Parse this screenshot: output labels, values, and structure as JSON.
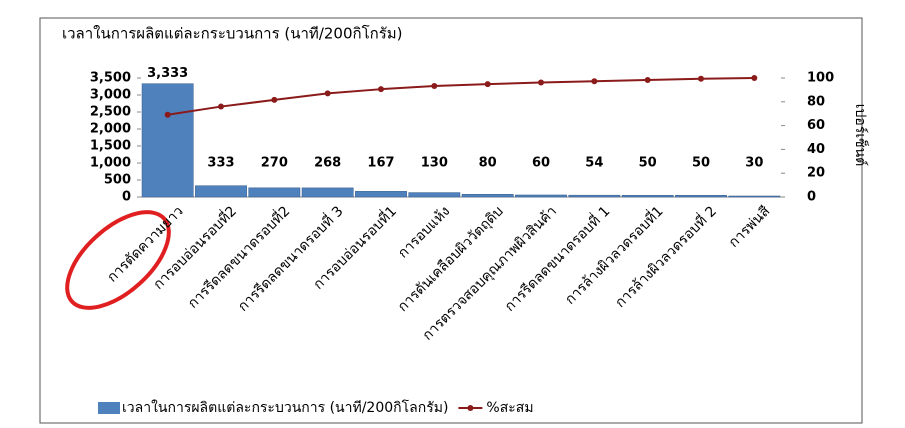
{
  "chart_data": {
    "type": "pareto",
    "title": "เวลาในการผลิตแต่ละกระบวนการ (นาที/200กิโกรัม)",
    "y2_label": "เปอร์เซ็นต์",
    "categories": [
      "การตัดความยาว",
      "การอบอ่อนรอบที่2",
      "การรีดลดขนาดรอบที่2",
      "การรีดลดขนาดรอบที่ 3",
      "การอบอ่อนรอบที่1",
      "การอบแห้ง",
      "การดันเคลือบผิววัตถุดิบ",
      "การตรวจสอบคุณภาพผิวสินค้า",
      "การรีดลดขนาดรอบที่ 1",
      "การล้างผิวลวดรอบที่1",
      "การล้างผิวลวดรอบที่ 2",
      "การพ่นสี"
    ],
    "series": [
      {
        "name": "เวลาในการผลิตแต่ละกระบวนการ (นาที/200กิโลกรัม)",
        "color": "#4f81bd",
        "values": [
          3333,
          333,
          270,
          268,
          167,
          130,
          80,
          60,
          54,
          50,
          50,
          30
        ],
        "value_labels": [
          "3,333",
          "333",
          "270",
          "268",
          "167",
          "130",
          "80",
          "60",
          "54",
          "50",
          "50",
          "30"
        ]
      },
      {
        "name": "%สะสม",
        "color": "#8b1a1a",
        "axis": "y2",
        "values": [
          69.1,
          76.0,
          81.6,
          87.1,
          90.6,
          93.3,
          94.9,
          96.2,
          97.3,
          98.3,
          99.4,
          100
        ]
      }
    ],
    "ylim": [
      0,
      3500
    ],
    "yticks": [
      0,
      500,
      {
        "value": 1000,
        "label": "1,000"
      },
      {
        "value": 1500,
        "label": "1,500"
      },
      {
        "value": 2000,
        "label": "2,000"
      },
      {
        "value": 2500,
        "label": "2,500"
      },
      {
        "value": 3000,
        "label": "3,000"
      },
      {
        "value": 3500,
        "label": "3,500"
      }
    ],
    "y2lim": [
      0,
      100
    ],
    "y2ticks": [
      0,
      20,
      40,
      60,
      80,
      100
    ]
  }
}
